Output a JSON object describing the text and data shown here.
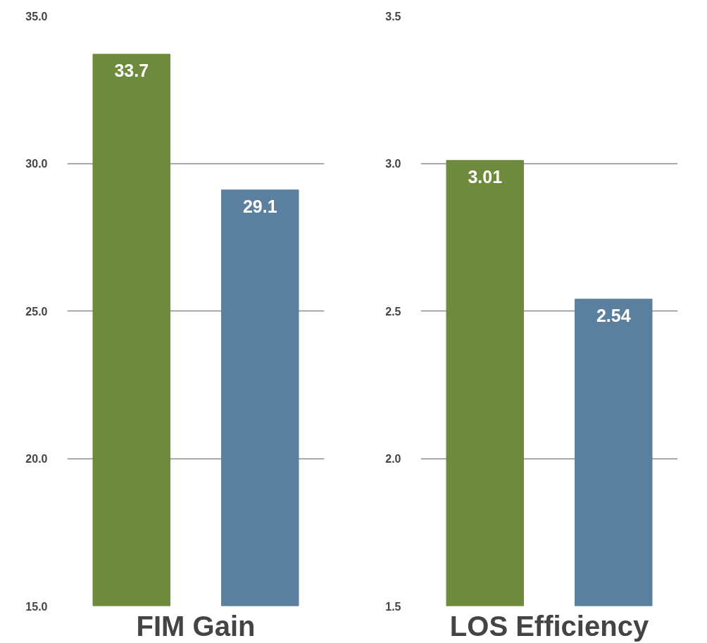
{
  "chart_data": [
    {
      "type": "bar",
      "xlabel": "FIM Gain",
      "categories": [
        null,
        null
      ],
      "values": [
        33.7,
        29.1
      ],
      "colors": [
        "#6e8b3d",
        "#5b7f9f"
      ],
      "ylim": [
        15,
        35
      ],
      "yticks": [
        {
          "value": 15,
          "label": "15.0"
        },
        {
          "value": 20,
          "label": "20.0"
        },
        {
          "value": 25,
          "label": "25.0"
        },
        {
          "value": 30,
          "label": "30.0"
        },
        {
          "value": 35,
          "label": "35.0"
        }
      ],
      "grid": "y",
      "data_labels": true,
      "tick_labels": "y"
    },
    {
      "type": "bar",
      "xlabel": "LOS Efficiency",
      "categories": [
        null,
        null
      ],
      "values": [
        3.01,
        2.54
      ],
      "colors": [
        "#6e8b3d",
        "#5b7f9f"
      ],
      "ylim": [
        1.5,
        3.5
      ],
      "yticks": [
        1.5,
        {
          "value": 2,
          "label": "2.0"
        },
        2.5,
        {
          "value": 3,
          "label": "3.0"
        },
        3.5
      ],
      "grid": "y",
      "data_labels": true,
      "tick_labels": "y"
    }
  ]
}
